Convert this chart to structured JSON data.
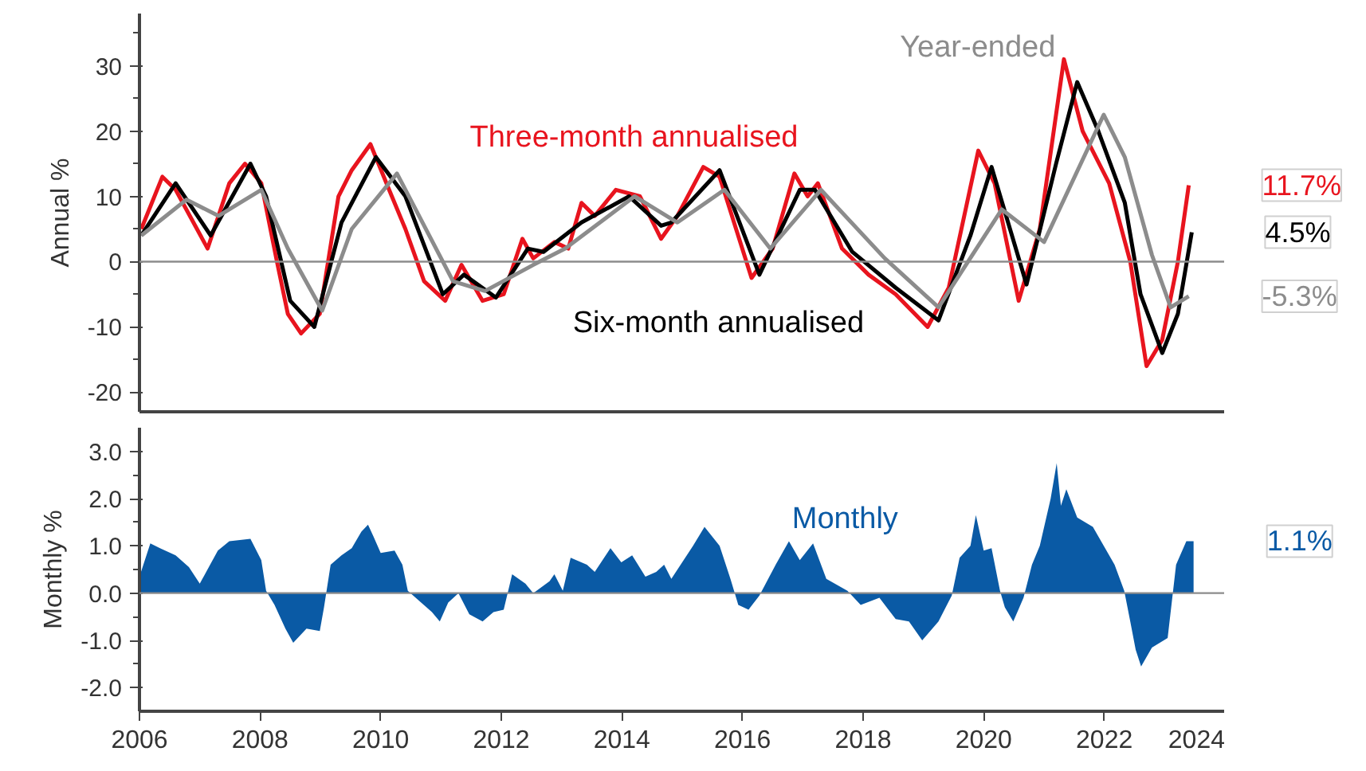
{
  "chart_data": [
    {
      "type": "line",
      "ylabel": "Annual %",
      "xlim": [
        2006,
        2024
      ],
      "ylim": [
        -23,
        38
      ],
      "yticks": [
        -20,
        {
          "value": -15,
          "label": null
        },
        -10,
        {
          "value": -5,
          "label": null
        },
        0,
        {
          "value": 5,
          "label": null
        },
        10,
        {
          "value": 15,
          "label": null
        },
        20,
        {
          "value": 25,
          "label": null
        },
        30,
        {
          "value": 35,
          "label": null
        }
      ],
      "tick_labels": "y",
      "grid": false,
      "line_style": "solid",
      "marker": "none",
      "ref_lines": [
        {
          "axis": "y",
          "value": 0,
          "color": "#8c8c8c"
        }
      ],
      "series": [
        {
          "name": "Three-month annualised",
          "color": "#e8141e",
          "x": [
            2006.03,
            2006.38,
            2006.6,
            2007.13,
            2007.49,
            2007.75,
            2008.02,
            2008.28,
            2008.46,
            2008.68,
            2008.99,
            2009.3,
            2009.52,
            2009.83,
            2010.14,
            2010.41,
            2010.72,
            2011.07,
            2011.34,
            2011.69,
            2012.04,
            2012.35,
            2012.53,
            2012.88,
            2013.11,
            2013.33,
            2013.55,
            2013.9,
            2014.3,
            2014.65,
            2014.92,
            2015.35,
            2015.62,
            2016.15,
            2016.5,
            2016.86,
            2017.08,
            2017.25,
            2017.65,
            2018.09,
            2018.54,
            2019.07,
            2019.42,
            2019.91,
            2020.18,
            2020.58,
            2020.93,
            2021.33,
            2021.64,
            2022.08,
            2022.43,
            2022.7,
            2022.96,
            2023.22,
            2023.4
          ],
          "values": [
            5,
            13,
            11,
            2,
            12,
            15,
            12,
            0,
            -8,
            -11,
            -8,
            10,
            14,
            18,
            11,
            5,
            -3,
            -6,
            -0.5,
            -6,
            -5,
            3.5,
            0.5,
            3,
            2,
            9,
            7,
            11,
            10,
            3.5,
            7,
            14.5,
            13,
            -2.5,
            2,
            13.5,
            10,
            12,
            2,
            -2,
            -5,
            -10,
            -4,
            17,
            12,
            -6,
            5,
            31,
            20,
            12,
            0,
            -16,
            -12,
            0,
            11.7
          ]
        },
        {
          "name": "Six-month annualised",
          "color": "#000000",
          "x": [
            2006.03,
            2006.6,
            2007.18,
            2007.84,
            2008.1,
            2008.5,
            2008.9,
            2009.35,
            2009.92,
            2010.41,
            2011.03,
            2011.38,
            2011.91,
            2012.44,
            2012.7,
            2013.33,
            2014.12,
            2014.65,
            2014.82,
            2015.62,
            2016.28,
            2016.95,
            2017.2,
            2017.82,
            2018.54,
            2019.25,
            2019.78,
            2020.13,
            2020.71,
            2021.2,
            2021.55,
            2021.9,
            2022.34,
            2022.6,
            2022.96,
            2023.22,
            2023.45
          ],
          "values": [
            4,
            12,
            4,
            15,
            10,
            -6,
            -10,
            6,
            16,
            10,
            -5,
            -2,
            -5.5,
            2,
            1.5,
            6,
            10,
            5.5,
            6,
            14,
            -2,
            11,
            11,
            1.5,
            -4,
            -9,
            4,
            14.5,
            -3.5,
            15,
            27.5,
            20,
            9,
            -5,
            -14,
            -8,
            4.5
          ]
        },
        {
          "name": "Year-ended",
          "color": "#8c8c8c",
          "x": [
            2006.03,
            2006.78,
            2007.31,
            2008.02,
            2008.46,
            2009.03,
            2009.52,
            2010.27,
            2011.2,
            2011.73,
            2012.53,
            2013.06,
            2014.21,
            2014.92,
            2015.7,
            2016.46,
            2017.3,
            2018.36,
            2019.25,
            2020.3,
            2021.0,
            2021.99,
            2022.34,
            2022.79,
            2023.1,
            2023.4
          ],
          "values": [
            4,
            9.5,
            7,
            11,
            2,
            -7.5,
            5,
            13.5,
            -3,
            -4.5,
            -0.5,
            2,
            10,
            6,
            11,
            2,
            11,
            0.5,
            -7,
            8,
            3,
            22.5,
            16,
            1,
            -7,
            -5.3
          ]
        }
      ],
      "annotations": [
        {
          "text": "11.7%",
          "x": 2023.4,
          "y": 11.7
        },
        {
          "text": "4.5%",
          "x": 2023.45,
          "y": 4.5
        },
        {
          "text": "-5.3%",
          "x": 2023.4,
          "y": -5.3
        }
      ]
    },
    {
      "type": "area",
      "ylabel": "Monthly %",
      "xlim": [
        2006,
        2024
      ],
      "ylim": [
        -2.5,
        3.5
      ],
      "xticks": [
        2006,
        2008,
        2010,
        2012,
        2014,
        2016,
        2018,
        2020,
        2022,
        2024
      ],
      "yticks": [
        {
          "value": -2.0,
          "label": "-2.0"
        },
        {
          "value": -1.5,
          "label": null
        },
        {
          "value": -1.0,
          "label": "-1.0"
        },
        {
          "value": -0.5,
          "label": null
        },
        {
          "value": 0,
          "label": "0.0"
        },
        {
          "value": 0.5,
          "label": null
        },
        {
          "value": 1.0,
          "label": "1.0"
        },
        {
          "value": 1.5,
          "label": null
        },
        {
          "value": 2.0,
          "label": "2.0"
        },
        {
          "value": 2.5,
          "label": null
        },
        {
          "value": 3.0,
          "label": "3.0"
        }
      ],
      "grid": false,
      "ref_lines": [
        {
          "axis": "y",
          "value": 0,
          "color": "#8c8c8c"
        }
      ],
      "series": [
        {
          "name": "Monthly",
          "color": "#0a5aa5",
          "x": [
            2006.0,
            2006.18,
            2006.34,
            2006.6,
            2006.82,
            2007.0,
            2007.15,
            2007.3,
            2007.49,
            2007.84,
            2008.02,
            2008.1,
            2008.24,
            2008.42,
            2008.55,
            2008.77,
            2008.99,
            2009.06,
            2009.17,
            2009.35,
            2009.52,
            2009.68,
            2009.79,
            2009.88,
            2010.0,
            2010.23,
            2010.36,
            2010.45,
            2010.67,
            2010.85,
            2010.98,
            2011.12,
            2011.29,
            2011.47,
            2011.69,
            2011.87,
            2012.04,
            2012.18,
            2012.4,
            2012.53,
            2012.8,
            2012.88,
            2013.02,
            2013.15,
            2013.42,
            2013.55,
            2013.81,
            2013.99,
            2014.17,
            2014.39,
            2014.57,
            2014.7,
            2014.82,
            2015.18,
            2015.37,
            2015.62,
            2015.8,
            2015.93,
            2016.1,
            2016.28,
            2016.55,
            2016.77,
            2016.95,
            2017.17,
            2017.39,
            2017.74,
            2017.96,
            2018.27,
            2018.54,
            2018.76,
            2018.98,
            2019.25,
            2019.47,
            2019.6,
            2019.78,
            2019.87,
            2020.0,
            2020.13,
            2020.27,
            2020.35,
            2020.49,
            2020.66,
            2020.8,
            2020.93,
            2021.11,
            2021.21,
            2021.28,
            2021.37,
            2021.55,
            2021.81,
            2021.99,
            2022.17,
            2022.33,
            2022.43,
            2022.52,
            2022.61,
            2022.79,
            2023.05,
            2023.19,
            2023.36,
            2023.48
          ],
          "values": [
            0.35,
            1.05,
            0.95,
            0.8,
            0.55,
            0.2,
            0.55,
            0.9,
            1.1,
            1.15,
            0.7,
            0.05,
            -0.25,
            -0.75,
            -1.05,
            -0.75,
            -0.8,
            -0.3,
            0.6,
            0.8,
            0.95,
            1.3,
            1.45,
            1.2,
            0.85,
            0.9,
            0.6,
            0.05,
            -0.2,
            -0.4,
            -0.6,
            -0.2,
            0,
            -0.45,
            -0.6,
            -0.4,
            -0.35,
            0.4,
            0.2,
            0.0,
            0.25,
            0.4,
            0.05,
            0.75,
            0.6,
            0.45,
            0.95,
            0.65,
            0.8,
            0.35,
            0.45,
            0.6,
            0.3,
            1.0,
            1.4,
            1.0,
            0.3,
            -0.25,
            -0.35,
            -0.05,
            0.6,
            1.1,
            0.7,
            1.05,
            0.3,
            0.05,
            -0.25,
            -0.1,
            -0.55,
            -0.6,
            -1.0,
            -0.6,
            -0.05,
            0.75,
            1.0,
            1.65,
            0.9,
            0.95,
            0.05,
            -0.3,
            -0.6,
            -0.1,
            0.6,
            1.0,
            2.0,
            2.75,
            1.85,
            2.2,
            1.6,
            1.4,
            1.0,
            0.6,
            0.05,
            -0.6,
            -1.2,
            -1.55,
            -1.15,
            -0.95,
            0.6,
            1.1,
            1.1
          ]
        }
      ],
      "annotations": [
        {
          "text": "1.1%",
          "x": 2023.48,
          "y": 1.1
        }
      ]
    }
  ]
}
